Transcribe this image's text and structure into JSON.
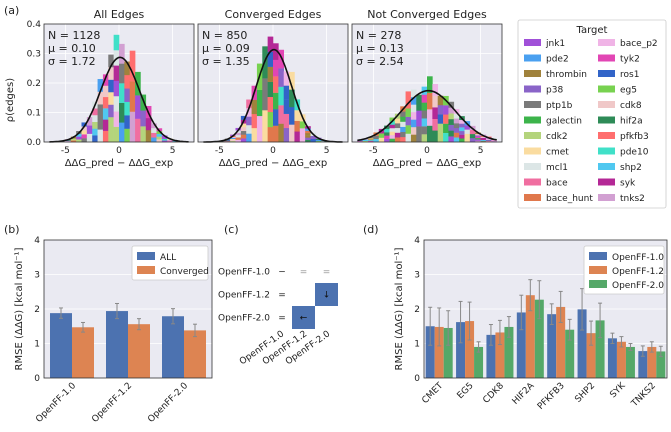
{
  "panel_labels": [
    "(a)",
    "(b)",
    "(c)",
    "(d)"
  ],
  "chart_data": [
    {
      "type": "histogram",
      "panel": "a",
      "xlabel": "ΔΔG_pred − ΔΔG_exp",
      "ylabel": "ρ(edges)",
      "xlim": [
        -7,
        7
      ],
      "ylim": [
        0,
        0.4
      ],
      "xticks": [
        "-5",
        "0",
        "5"
      ],
      "yticks": [
        "0.0",
        "0.1",
        "0.2",
        "0.3",
        "0.4"
      ],
      "subplots": [
        {
          "title": "All Edges",
          "n": "N = 1128",
          "mu": "μ = 0.10",
          "sigma": "σ = 1.72",
          "mu_val": 0.1,
          "sigma_val": 1.72,
          "peak": 0.33,
          "width": 6.6
        },
        {
          "title": "Converged Edges",
          "n": "N = 850",
          "mu": "μ = 0.09",
          "sigma": "σ = 1.35",
          "mu_val": 0.09,
          "sigma_val": 1.35,
          "peak": 0.36,
          "width": 5.4
        },
        {
          "title": "Not Converged Edges",
          "n": "N = 278",
          "mu": "μ = 0.13",
          "sigma": "σ = 2.54",
          "mu_val": 0.13,
          "sigma_val": 2.54,
          "peak": 0.2,
          "width": 12.6
        }
      ],
      "legend": {
        "title": "Target",
        "entries": [
          {
            "name": "jnk1",
            "color": "#a050d8"
          },
          {
            "name": "pde2",
            "color": "#4aa0f0"
          },
          {
            "name": "thrombin",
            "color": "#a0823c"
          },
          {
            "name": "p38",
            "color": "#8a64c8"
          },
          {
            "name": "ptp1b",
            "color": "#7a7a7a"
          },
          {
            "name": "galectin",
            "color": "#3cb44b"
          },
          {
            "name": "cdk2",
            "color": "#b4d47c"
          },
          {
            "name": "cmet",
            "color": "#fadca0"
          },
          {
            "name": "mcl1",
            "color": "#dce6e6"
          },
          {
            "name": "bace",
            "color": "#f06ea0"
          },
          {
            "name": "bace_hunt",
            "color": "#e0784c"
          },
          {
            "name": "bace_p2",
            "color": "#f0b4e6"
          },
          {
            "name": "tyk2",
            "color": "#e246b4"
          },
          {
            "name": "ros1",
            "color": "#3264c8"
          },
          {
            "name": "eg5",
            "color": "#78d250"
          },
          {
            "name": "cdk8",
            "color": "#f0c8c8"
          },
          {
            "name": "hif2a",
            "color": "#2e8b57"
          },
          {
            "name": "pfkfb3",
            "color": "#ff6e6e"
          },
          {
            "name": "pde10",
            "color": "#40e0c8"
          },
          {
            "name": "shp2",
            "color": "#50c8f0"
          },
          {
            "name": "syk",
            "color": "#b42896"
          },
          {
            "name": "tnks2",
            "color": "#d2a0d2"
          }
        ]
      }
    },
    {
      "type": "bar",
      "panel": "b",
      "categories": [
        "OpenFF-1.0",
        "OpenFF-1.2",
        "OpenFF-2.0"
      ],
      "series": [
        {
          "name": "ALL",
          "color": "#4c72b0",
          "values": [
            1.88,
            1.94,
            1.79
          ],
          "err": [
            0.15,
            0.22,
            0.22
          ]
        },
        {
          "name": "Converged",
          "color": "#dd8452",
          "values": [
            1.47,
            1.56,
            1.38
          ],
          "err": [
            0.14,
            0.16,
            0.18
          ]
        }
      ],
      "ylabel": "RMSE (ΔΔG) [kcal mol⁻¹]",
      "ylim": [
        0,
        4
      ],
      "yticks": [
        "0",
        "1",
        "2",
        "3",
        "4"
      ]
    },
    {
      "type": "heatmap",
      "panel": "c",
      "rows": [
        "OpenFF-1.0",
        "OpenFF-1.2",
        "OpenFF-2.0"
      ],
      "cols": [
        "OpenFF-1.0",
        "OpenFF-1.2",
        "OpenFF-2.0"
      ],
      "row_markers": [
        "−",
        "=",
        "="
      ],
      "cells": [
        {
          "row": 0,
          "col": 1,
          "symbol": "=",
          "filled": false
        },
        {
          "row": 0,
          "col": 2,
          "symbol": "=",
          "filled": false
        },
        {
          "row": 1,
          "col": 2,
          "symbol": "↓",
          "filled": true
        },
        {
          "row": 2,
          "col": 1,
          "symbol": "←",
          "filled": true
        }
      ],
      "fill_color": "#4c72b0"
    },
    {
      "type": "bar",
      "panel": "d",
      "categories": [
        "CMET",
        "EG5",
        "CDK8",
        "HIF2A",
        "PFKFB3",
        "SHP2",
        "SYK",
        "TNKS2"
      ],
      "series": [
        {
          "name": "OpenFF-1.0",
          "color": "#4c72b0",
          "values": [
            1.5,
            1.62,
            1.25,
            1.9,
            1.85,
            1.99,
            1.15,
            0.78
          ],
          "err": [
            0.55,
            0.6,
            0.3,
            0.5,
            0.3,
            0.6,
            0.15,
            0.15
          ]
        },
        {
          "name": "OpenFF-1.2",
          "color": "#dd8452",
          "values": [
            1.48,
            1.65,
            1.32,
            2.4,
            2.06,
            1.3,
            1.05,
            0.9
          ],
          "err": [
            0.55,
            0.55,
            0.35,
            0.45,
            0.45,
            0.35,
            0.15,
            0.15
          ]
        },
        {
          "name": "OpenFF-2.0",
          "color": "#55a868",
          "values": [
            1.45,
            0.9,
            1.48,
            2.27,
            1.4,
            1.67,
            0.9,
            0.77
          ],
          "err": [
            0.5,
            0.15,
            0.3,
            0.55,
            0.3,
            0.5,
            0.1,
            0.15
          ]
        }
      ],
      "ylabel": "RMSE (ΔΔG) [kcal mol⁻¹]",
      "ylim": [
        0,
        4
      ],
      "yticks": [
        "0",
        "1",
        "2",
        "3",
        "4"
      ]
    }
  ]
}
